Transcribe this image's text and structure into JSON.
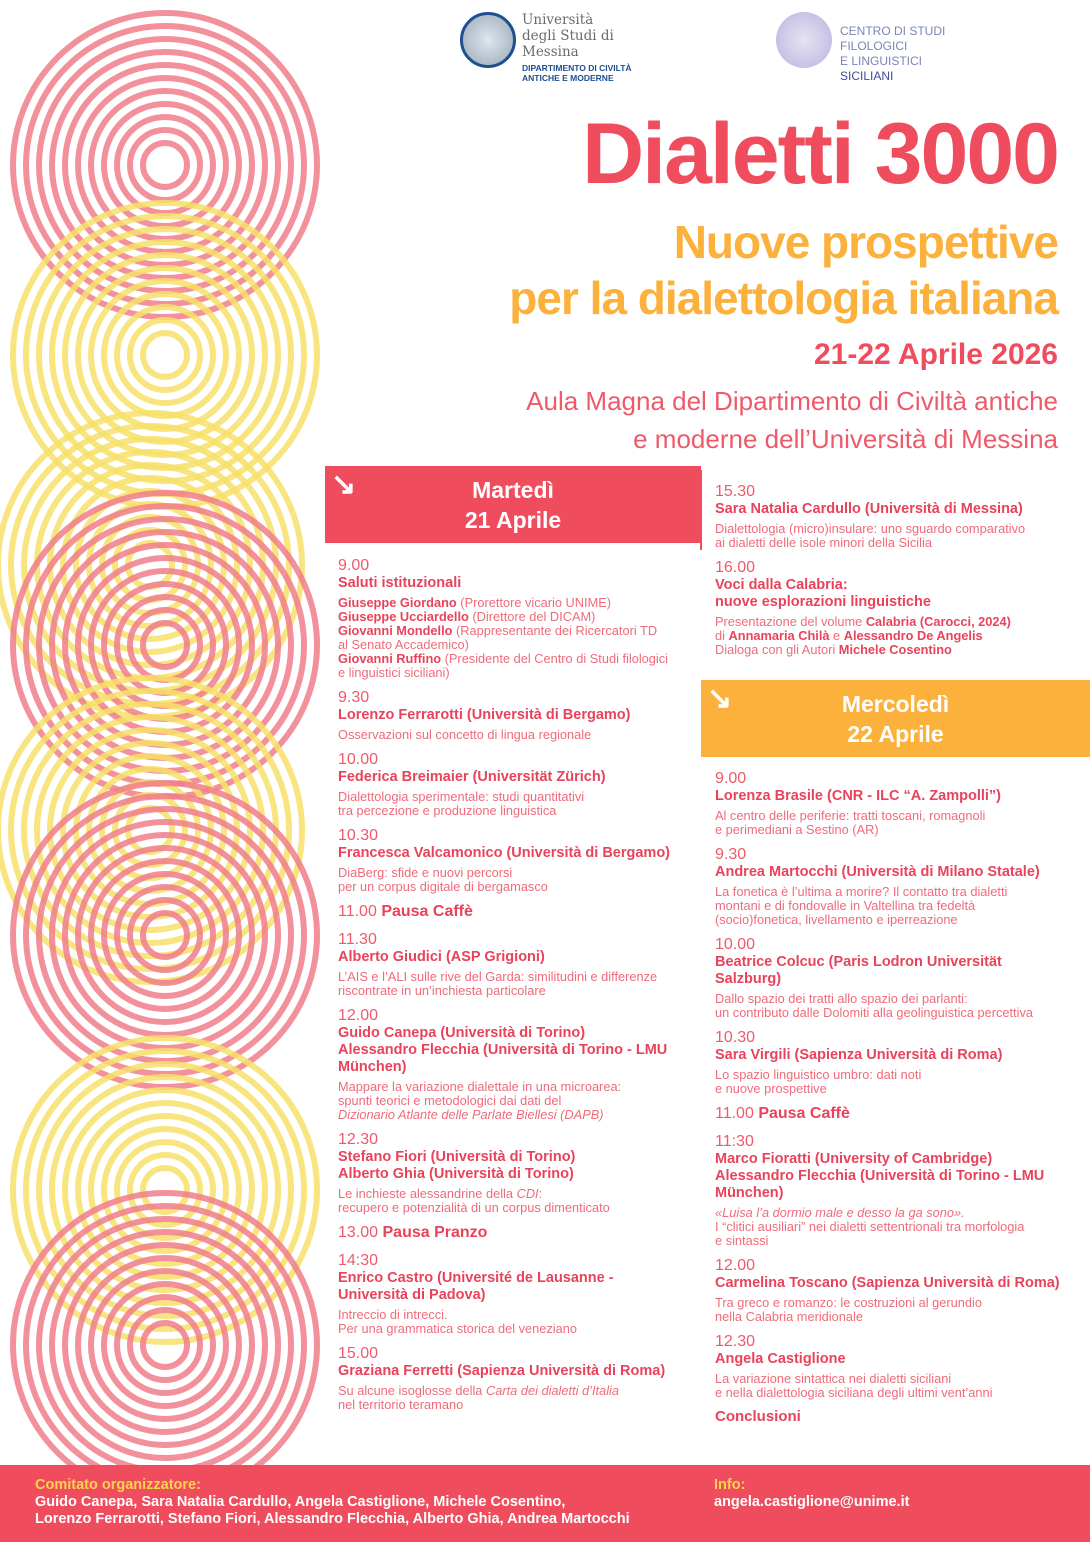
{
  "colors": {
    "red": "#ef4c5e",
    "yellow": "#fbb13c",
    "pink_stripes": "#f07e8a",
    "yellow_stripes": "#f7e06a"
  },
  "logos": {
    "university": {
      "lines": [
        "Università",
        "degli Studi di",
        "Messina"
      ],
      "department": [
        "DIPARTIMENTO DI CIVILTÀ",
        "ANTICHE E MODERNE"
      ]
    },
    "centro": {
      "lines": [
        "CENTRO DI STUDI",
        "FILOLOGICI",
        "E LINGUISTICI"
      ],
      "last": "SICILIANI"
    }
  },
  "title": "Dialetti 3000",
  "subtitle": [
    "Nuove prospettive",
    "per la dialettologia italiana"
  ],
  "date": "21-22 Aprile 2026",
  "venue": [
    "Aula Magna del Dipartimento di Civiltà antiche",
    "e moderne dell’Università di Messina"
  ],
  "day1": {
    "header": [
      "Martedì",
      "21 Aprile"
    ],
    "items": [
      {
        "time": "9.00",
        "title": [
          "Saluti istituzionali"
        ],
        "desc": [
          [
            {
              "t": "Giuseppe Giordano",
              "b": 1
            },
            {
              "t": " (Prorettore vicario UNIME)"
            }
          ],
          [
            {
              "t": "Giuseppe Ucciardello",
              "b": 1
            },
            {
              "t": " (Direttore del DICAM)"
            }
          ],
          [
            {
              "t": "Giovanni Mondello",
              "b": 1
            },
            {
              "t": " (Rappresentante dei Ricercatori TD"
            }
          ],
          [
            {
              "t": "al Senato Accademico)"
            }
          ],
          [
            {
              "t": "Giovanni Ruffino",
              "b": 1
            },
            {
              "t": " (Presidente del Centro di Studi filologici"
            }
          ],
          [
            {
              "t": "e linguistici siciliani)"
            }
          ]
        ]
      },
      {
        "time": "9.30",
        "title": [
          "Lorenzo Ferrarotti (Università di Bergamo)"
        ],
        "desc": [
          [
            {
              "t": "Osservazioni sul concetto di lingua regionale"
            }
          ]
        ]
      },
      {
        "time": "10.00",
        "title": [
          "Federica Breimaier (Universität Zürich)"
        ],
        "desc": [
          [
            {
              "t": "Dialettologia sperimentale: studi quantitativi"
            }
          ],
          [
            {
              "t": "tra percezione e produzione linguistica"
            }
          ]
        ]
      },
      {
        "time": "10.30",
        "title": [
          "Francesca Valcamonico (Università di Bergamo)"
        ],
        "desc": [
          [
            {
              "t": "DiaBerg: sfide e nuovi percorsi"
            }
          ],
          [
            {
              "t": "per un corpus digitale di bergamasco"
            }
          ]
        ]
      },
      {
        "pause": "11.00",
        "label": "Pausa Caffè"
      },
      {
        "time": "11.30",
        "title": [
          "Alberto Giudici (ASP Grigioni)"
        ],
        "desc": [
          [
            {
              "t": "L’AIS e l’ALI sulle rive del Garda: similitudini e differenze"
            }
          ],
          [
            {
              "t": "riscontrate in un’inchiesta particolare"
            }
          ]
        ]
      },
      {
        "time": "12.00",
        "title": [
          "Guido Canepa (Università di Torino)",
          "Alessandro Flecchia (Università di Torino - LMU",
          "München)"
        ],
        "desc": [
          [
            {
              "t": "Mappare la variazione dialettale in una microarea:"
            }
          ],
          [
            {
              "t": "spunti teorici e metodologici dai dati del"
            }
          ],
          [
            {
              "t": "Dizionario Atlante delle Parlate Biellesi (DAPB)",
              "i": 1
            }
          ]
        ]
      },
      {
        "time": "12.30",
        "title": [
          "Stefano Fiori (Università di Torino)",
          "Alberto Ghia (Università di Torino)"
        ],
        "desc": [
          [
            {
              "t": "Le inchieste alessandrine della "
            },
            {
              "t": "CDI",
              "i": 1
            },
            {
              "t": ":"
            }
          ],
          [
            {
              "t": "recupero e potenzialità di un corpus dimenticato"
            }
          ]
        ]
      },
      {
        "pause": "13.00",
        "label": "Pausa Pranzo"
      },
      {
        "time": "14:30",
        "title": [
          "Enrico Castro (Université de Lausanne -",
          "Università di Padova)"
        ],
        "desc": [
          [
            {
              "t": "Intreccio di intrecci."
            }
          ],
          [
            {
              "t": "Per una grammatica storica del veneziano"
            }
          ]
        ]
      },
      {
        "time": "15.00",
        "title": [
          "Graziana Ferretti (Sapienza Università di Roma)"
        ],
        "desc": [
          [
            {
              "t": "Su alcune isoglosse della "
            },
            {
              "t": "Carta dei dialetti d’Italia",
              "i": 1
            }
          ],
          [
            {
              "t": "nel territorio teramano"
            }
          ]
        ]
      }
    ]
  },
  "day1_cont": [
    {
      "time": "15.30",
      "title": [
        "Sara Natalia Cardullo (Università di Messina)"
      ],
      "desc": [
        [
          {
            "t": "Dialettologia (micro)insulare: uno sguardo comparativo"
          }
        ],
        [
          {
            "t": "ai dialetti delle isole minori della Sicilia"
          }
        ]
      ]
    },
    {
      "time": "16.00",
      "title": [
        "Voci dalla Calabria:",
        "nuove esplorazioni linguistiche"
      ],
      "desc": [
        [
          {
            "t": "Presentazione del volume "
          },
          {
            "t": "Calabria (Carocci, 2024)",
            "b": 1
          }
        ],
        [
          {
            "t": "di "
          },
          {
            "t": "Annamaria Chilà",
            "b": 1
          },
          {
            "t": " e "
          },
          {
            "t": "Alessandro De Angelis",
            "b": 1
          }
        ],
        [
          {
            "t": "Dialoga con gli Autori "
          },
          {
            "t": "Michele Cosentino",
            "b": 1
          }
        ]
      ]
    }
  ],
  "day2": {
    "header": [
      "Mercoledì",
      "22 Aprile"
    ],
    "items": [
      {
        "time": "9.00",
        "title": [
          "Lorenza Brasile (CNR - ILC “A. Zampolli”)"
        ],
        "desc": [
          [
            {
              "t": "Al centro delle periferie: tratti toscani, romagnoli"
            }
          ],
          [
            {
              "t": "e perimediani a Sestino (AR)"
            }
          ]
        ]
      },
      {
        "time": "9.30",
        "title": [
          "Andrea Martocchi (Università di Milano Statale)"
        ],
        "desc": [
          [
            {
              "t": "La fonetica è l’ultima a morire? Il contatto tra dialetti"
            }
          ],
          [
            {
              "t": "montani e di fondovalle in Valtellina tra fedeltà"
            }
          ],
          [
            {
              "t": "(socio)fonetica, livellamento e iperreazione"
            }
          ]
        ]
      },
      {
        "time": "10.00",
        "title": [
          "Beatrice Colcuc (Paris Lodron Universität",
          "Salzburg)"
        ],
        "desc": [
          [
            {
              "t": "Dallo spazio dei tratti allo spazio dei parlanti:"
            }
          ],
          [
            {
              "t": "un contributo dalle Dolomiti alla geolinguistica percettiva"
            }
          ]
        ]
      },
      {
        "time": "10.30",
        "title": [
          "Sara Virgili (Sapienza Università di Roma)"
        ],
        "desc": [
          [
            {
              "t": "Lo spazio linguistico umbro: dati noti"
            }
          ],
          [
            {
              "t": "e nuove prospettive"
            }
          ]
        ]
      },
      {
        "pause": "11.00",
        "label": "Pausa Caffè"
      },
      {
        "time": "11:30",
        "title": [
          "Marco Fioratti (University of Cambridge)",
          "Alessandro Flecchia (Università di Torino - LMU",
          "München)"
        ],
        "desc": [
          [
            {
              "t": "«Luisa l’a dormio male e desso la ga sono».",
              "i": 1
            }
          ],
          [
            {
              "t": "I “clitici ausiliari” nei dialetti settentrionali tra morfologia"
            }
          ],
          [
            {
              "t": "e sintassi"
            }
          ]
        ]
      },
      {
        "time": "12.00",
        "title": [
          "Carmelina Toscano (Sapienza Università di Roma)"
        ],
        "desc": [
          [
            {
              "t": "Tra greco e romanzo: le costruzioni al gerundio"
            }
          ],
          [
            {
              "t": "nella Calabria meridionale"
            }
          ]
        ]
      },
      {
        "time": "12.30",
        "title": [
          "Angela Castiglione"
        ],
        "desc": [
          [
            {
              "t": "La variazione sintattica nei dialetti siciliani"
            }
          ],
          [
            {
              "t": "e nella dialettologia siciliana degli ultimi vent’anni"
            }
          ]
        ]
      }
    ],
    "conclusion": "Conclusioni"
  },
  "footer": {
    "committee_label": "Comitato organizzatore:",
    "committee": [
      "Guido Canepa, Sara Natalia Cardullo, Angela Castiglione, Michele Cosentino,",
      "Lorenzo Ferrarotti, Stefano Fiori, Alessandro Flecchia, Alberto Ghia, Andrea Martocchi"
    ],
    "info_label": "Info:",
    "email": "angela.castiglione@unime.it"
  }
}
